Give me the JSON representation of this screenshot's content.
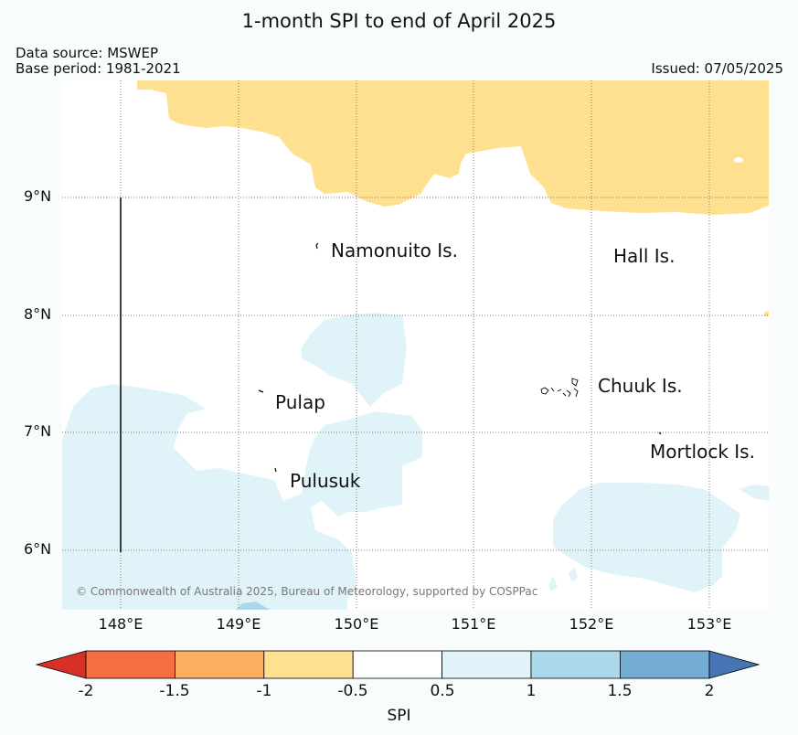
{
  "title": "1-month SPI to end of April 2025",
  "data_source": "Data source: MSWEP",
  "base_period": "Base period: 1981-2021",
  "issued": "Issued: 07/05/2025",
  "longitudes": [
    "148°E",
    "149°E",
    "150°E",
    "151°E",
    "152°E",
    "153°E"
  ],
  "latitudes": [
    "9°N",
    "8°N",
    "7°N",
    "6°N"
  ],
  "places": {
    "namonuito": "Namonuito Is.",
    "hall": "Hall Is.",
    "pulap": "Pulap",
    "chuuk": "Chuuk Is.",
    "mortlock": "Mortlock Is.",
    "pulusuk": "Pulusuk"
  },
  "copyright": "© Commonwealth of Australia 2025, Bureau of Meteorology, supported by COSPPac",
  "colorbar": {
    "label": "SPI",
    "ticks": [
      "-2",
      "-1.5",
      "-1",
      "-0.5",
      "0.5",
      "1",
      "1.5",
      "2"
    ],
    "colors": {
      "below_-2": "#d73027",
      "-2_-1.5": "#f46d43",
      "-1.5_-1": "#fdae61",
      "-1_-0.5": "#fee090",
      "-0.5_0.5": "#ffffff",
      "0.5_1": "#e0f3f8",
      "1_1.5": "#abd9e9",
      "1.5_2": "#74add1",
      "above_2": "#4575b4"
    }
  }
}
